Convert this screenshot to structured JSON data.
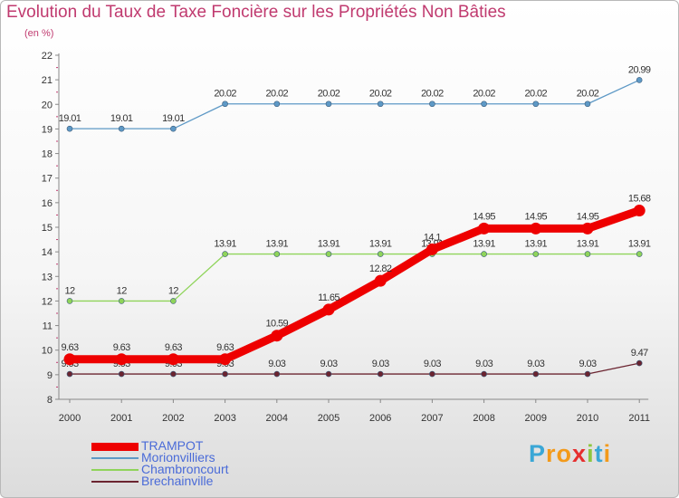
{
  "title": "Evolution du Taux de Taxe Foncière sur les Propriétés Non Bâties",
  "subtitle": "(en %)",
  "brand": {
    "text": "Proxiti",
    "letter_colors": [
      "#3aa7d6",
      "#f39a1a",
      "#f39a1a",
      "#e62e2e",
      "#8dc63f",
      "#3aa7d6",
      "#f39a1a"
    ]
  },
  "chart_data": {
    "type": "line",
    "title": "Evolution du Taux de Taxe Foncière sur les Propriétés Non Bâties",
    "ylabel": "(en %)",
    "xlabel": "",
    "ylim": [
      8,
      22
    ],
    "yticks": [
      8,
      9,
      10,
      11,
      12,
      13,
      14,
      15,
      16,
      17,
      18,
      19,
      20,
      21,
      22
    ],
    "grid": false,
    "categories": [
      "2000",
      "2001",
      "2002",
      "2003",
      "2004",
      "2005",
      "2006",
      "2007",
      "2008",
      "2009",
      "2010",
      "2011"
    ],
    "series": [
      {
        "name": "TRAMPOT",
        "color": "#ee0000",
        "emphasis": true,
        "values": [
          9.63,
          9.63,
          9.63,
          9.63,
          10.59,
          11.65,
          12.82,
          14.1,
          14.95,
          14.95,
          14.95,
          15.68
        ],
        "labels": [
          "9.63",
          "9.63",
          "9.63",
          "9.63",
          "10.59",
          "11.65",
          "12.82",
          "14.1",
          "14.95",
          "14.95",
          "14.95",
          "15.68"
        ]
      },
      {
        "name": "Morionvilliers",
        "color": "#5e99c6",
        "values": [
          19.01,
          19.01,
          19.01,
          20.02,
          20.02,
          20.02,
          20.02,
          20.02,
          20.02,
          20.02,
          20.02,
          20.99
        ],
        "labels": [
          "19.01",
          "19.01",
          "19.01",
          "20.02",
          "20.02",
          "20.02",
          "20.02",
          "20.02",
          "20.02",
          "20.02",
          "20.02",
          "20.99"
        ]
      },
      {
        "name": "Chambroncourt",
        "color": "#8fd45a",
        "values": [
          12,
          12,
          12,
          13.91,
          13.91,
          13.91,
          13.91,
          13.91,
          13.91,
          13.91,
          13.91,
          13.91
        ],
        "labels": [
          "12",
          "12",
          "12",
          "13.91",
          "13.91",
          "13.91",
          "13.91",
          "13.91",
          "13.91",
          "13.91",
          "13.91",
          "13.91"
        ]
      },
      {
        "name": "Brechainville",
        "color": "#6b2430",
        "values": [
          9.03,
          9.03,
          9.03,
          9.03,
          9.03,
          9.03,
          9.03,
          9.03,
          9.03,
          9.03,
          9.03,
          9.47
        ],
        "labels": [
          "9.03",
          "9.03",
          "9.03",
          "9.03",
          "9.03",
          "9.03",
          "9.03",
          "9.03",
          "9.03",
          "9.03",
          "9.03",
          "9.47"
        ]
      }
    ]
  }
}
